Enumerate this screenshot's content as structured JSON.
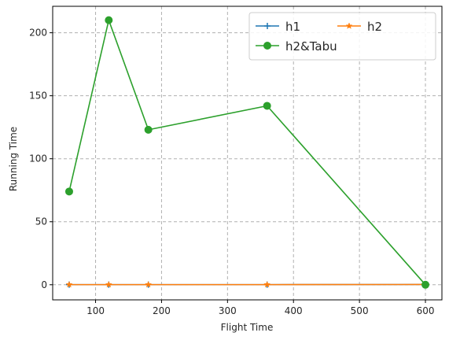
{
  "chart_data": {
    "type": "line",
    "title": "",
    "xlabel": "Flight Time",
    "ylabel": "Running Time",
    "xlim": [
      35,
      625
    ],
    "ylim": [
      -12,
      221
    ],
    "xticks": [
      100,
      200,
      300,
      400,
      500,
      600
    ],
    "yticks": [
      0,
      50,
      100,
      150,
      200
    ],
    "grid": true,
    "legend_position": "top-right",
    "legend_columns": 2,
    "series": [
      {
        "name": "h1",
        "color": "#1f77b4",
        "marker": "plus",
        "x": [
          60,
          120,
          180,
          360,
          600
        ],
        "y": [
          0.1,
          0.1,
          0.1,
          0.1,
          0.2
        ]
      },
      {
        "name": "h2",
        "color": "#ff7f0e",
        "marker": "star",
        "x": [
          60,
          120,
          180,
          360,
          600
        ],
        "y": [
          0.1,
          0.1,
          0.1,
          0.1,
          0.2
        ]
      },
      {
        "name": "h2&Tabu",
        "color": "#2ca02c",
        "marker": "circle",
        "x": [
          60,
          120,
          180,
          360,
          600
        ],
        "y": [
          74,
          210,
          123,
          142,
          0
        ]
      }
    ]
  }
}
